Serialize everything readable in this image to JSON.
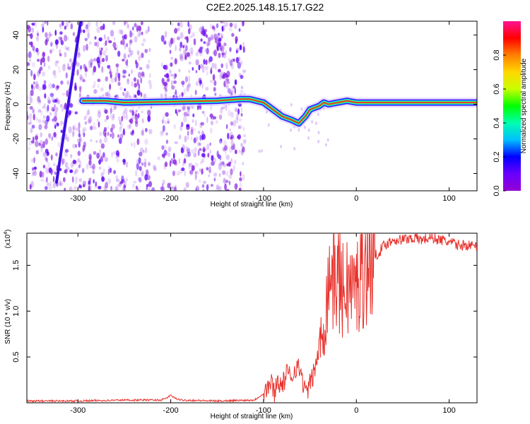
{
  "title": "C2E2.2025.148.15.17.G22",
  "colors": {
    "snr_line": "#e8322c",
    "spectro_scatter": "#8a2be2",
    "spectro_trace_core": "#ff2020",
    "colorbar": [
      "#9400d3",
      "#6a00ff",
      "#0000ff",
      "#00bfff",
      "#00ffb0",
      "#00ff00",
      "#c8ff00",
      "#ffd700",
      "#ff8000",
      "#ff0000",
      "#ff1493"
    ]
  },
  "chart_data": [
    {
      "type": "heatmap",
      "xlabel": "Height of straight line (km)",
      "ylabel": "Frequency (Hz)",
      "xlim": [
        -355,
        130
      ],
      "ylim": [
        -50,
        48
      ],
      "xticks": [
        -300,
        -200,
        -100,
        0,
        100
      ],
      "xtick_labels": [
        "-300",
        "-200",
        "-100",
        "0",
        "100"
      ],
      "yticks": [
        -40,
        -20,
        0,
        20,
        40
      ],
      "ytick_labels": [
        "-40",
        "-20",
        "0",
        "20",
        "40"
      ],
      "colorbar": {
        "label": "Normalized spectral amplitude",
        "range": [
          0,
          1
        ],
        "ticks": [
          0.0,
          0.2,
          0.4,
          0.6,
          0.8
        ],
        "tick_labels": [
          "0.0",
          "0.2",
          "0.4",
          "0.6",
          "0.8"
        ]
      },
      "trace": {
        "x": [
          -295,
          -270,
          -250,
          -200,
          -150,
          -125,
          -115,
          -100,
          -90,
          -80,
          -70,
          -62,
          -55,
          -50,
          -45,
          -40,
          -35,
          -30,
          -20,
          -10,
          0,
          20,
          50,
          100,
          130
        ],
        "y": [
          2,
          2,
          1,
          1.5,
          2,
          3,
          3,
          1,
          -3,
          -7,
          -9,
          -11,
          -7,
          -3,
          -2,
          -1,
          1,
          0,
          1,
          2,
          1,
          1,
          1,
          1,
          1
        ]
      },
      "streak": {
        "x": [
          -323,
          -297
        ],
        "y": [
          -45,
          48
        ]
      }
    },
    {
      "type": "line",
      "xlabel": "Height of straight line (km)",
      "ylabel": "SNR (10 * v/v)",
      "multiplier_label": "(x10",
      "multiplier_exp": "4",
      "multiplier_close": ")",
      "xlim": [
        -355,
        130
      ],
      "ylim": [
        0,
        1.85
      ],
      "xticks": [
        -300,
        -200,
        -100,
        0,
        100
      ],
      "xtick_labels": [
        "-300",
        "-200",
        "-100",
        "0",
        "100"
      ],
      "yticks": [
        0.5,
        1.0,
        1.5
      ],
      "ytick_labels": [
        "0.5",
        "1.0",
        "1.5"
      ],
      "series": [
        {
          "x": [
            -355,
            -300,
            -250,
            -210,
            -205,
            -200,
            -195,
            -190,
            -150,
            -110,
            -100,
            -95,
            -92,
            -88,
            -85,
            -80,
            -75,
            -70,
            -65,
            -60,
            -55,
            -50,
            -45,
            -40,
            -35,
            -30,
            -28,
            -25,
            -20,
            -15,
            -10,
            -5,
            0,
            5,
            10,
            15,
            20,
            25,
            30,
            40,
            50,
            60,
            70,
            80,
            90,
            100,
            110,
            120,
            130
          ],
          "y": [
            0.02,
            0.02,
            0.03,
            0.03,
            0.05,
            0.08,
            0.05,
            0.03,
            0.02,
            0.03,
            0.1,
            0.18,
            0.22,
            0.12,
            0.25,
            0.18,
            0.32,
            0.28,
            0.4,
            0.35,
            0.1,
            0.2,
            0.35,
            0.6,
            0.85,
            1.3,
            1.5,
            1.35,
            1.4,
            1.2,
            1.3,
            1.25,
            1.25,
            1.4,
            1.5,
            1.55,
            1.6,
            1.65,
            1.72,
            1.78,
            1.78,
            1.8,
            1.78,
            1.8,
            1.78,
            1.75,
            1.72,
            1.72,
            1.7
          ]
        }
      ]
    }
  ]
}
